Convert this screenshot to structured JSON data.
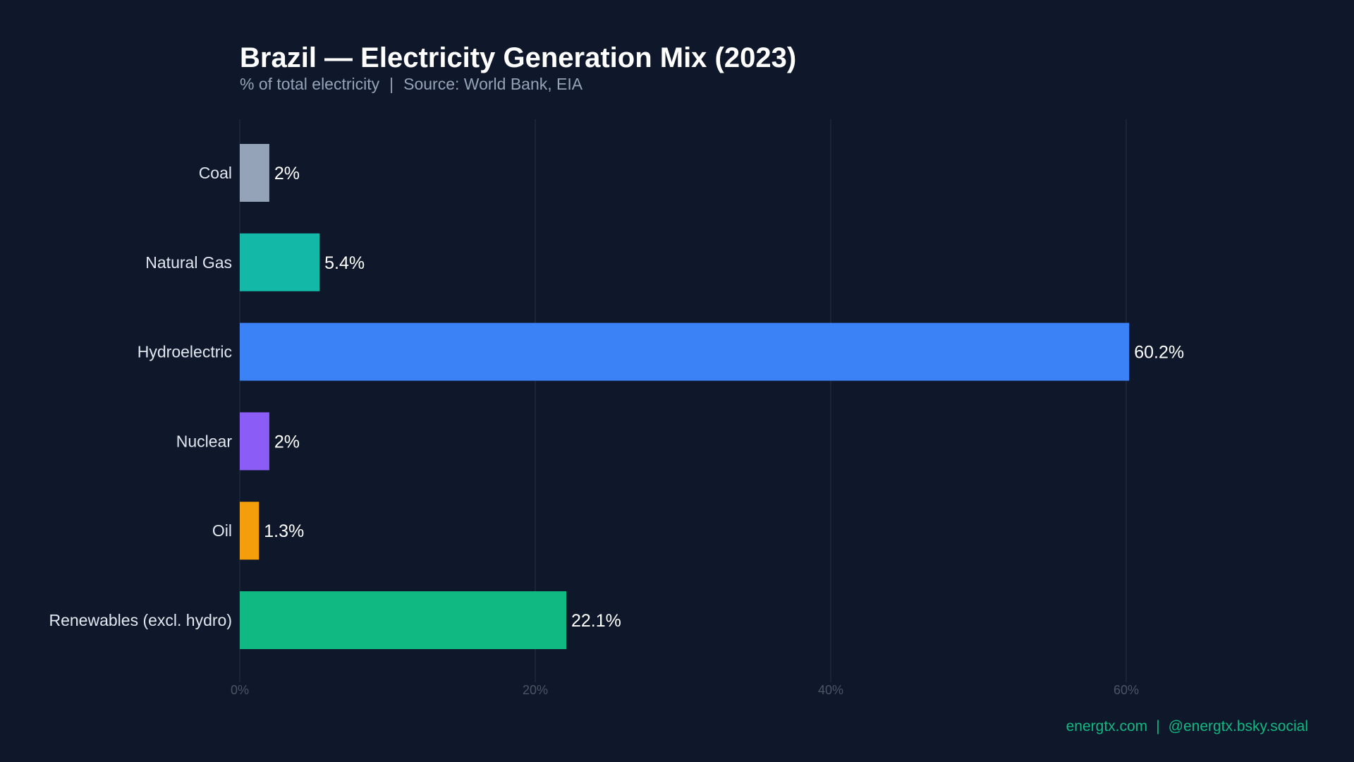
{
  "title": "Brazil — Electricity Generation Mix (2023)",
  "subtitle": "% of total electricity",
  "source": "Source: World Bank, EIA",
  "footer": {
    "site": "energtx.com",
    "social": "@energtx.bsky.social",
    "color": "#10b981"
  },
  "chart_data": {
    "type": "bar",
    "orientation": "horizontal",
    "title": "Brazil — Electricity Generation Mix (2023)",
    "xlabel": "",
    "ylabel": "",
    "xlim": [
      0,
      70
    ],
    "grid": true,
    "ticks": [
      "0%",
      "20%",
      "40%",
      "60%"
    ],
    "tick_values": [
      0,
      20,
      40,
      60
    ],
    "categories": [
      "Coal",
      "Natural Gas",
      "Hydroelectric",
      "Nuclear",
      "Oil",
      "Renewables (excl. hydro)"
    ],
    "values": [
      2,
      5.4,
      60.2,
      2,
      1.3,
      22.1
    ],
    "labels": [
      "2%",
      "5.4%",
      "60.2%",
      "2%",
      "1.3%",
      "22.1%"
    ],
    "colors": [
      "#94a3b8",
      "#14b8a6",
      "#3b82f6",
      "#8b5cf6",
      "#f59e0b",
      "#10b981"
    ]
  }
}
